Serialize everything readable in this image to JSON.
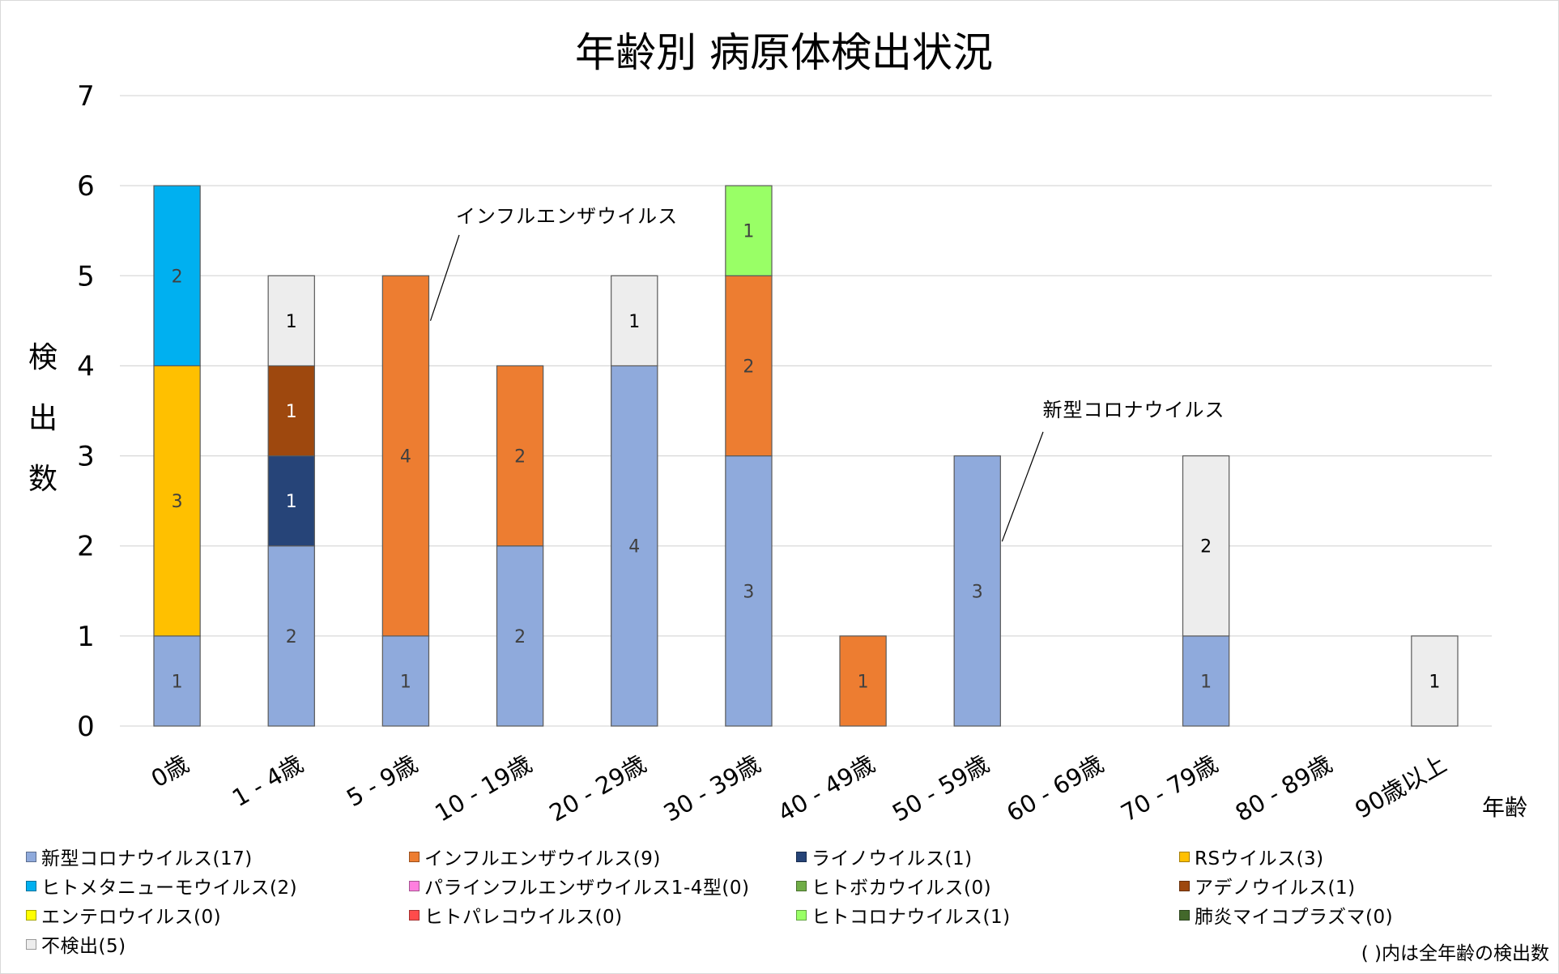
{
  "chart_data": {
    "type": "bar",
    "stacked": true,
    "title": "年齢別 病原体検出状況",
    "xlabel": "年齢",
    "ylabel": "検出数",
    "ylim": [
      0,
      7
    ],
    "yticks": [
      0,
      1,
      2,
      3,
      4,
      5,
      6,
      7
    ],
    "grid": true,
    "legend_position": "bottom",
    "categories": [
      "0歳",
      "1 - 4歳",
      "5 - 9歳",
      "10 - 19歳",
      "20 - 29歳",
      "30 - 39歳",
      "40 - 49歳",
      "50 - 59歳",
      "60 - 69歳",
      "70 - 79歳",
      "80 - 89歳",
      "90歳以上"
    ],
    "series": [
      {
        "name": "新型コロナウイルス",
        "total": 17,
        "color": "#8faadc",
        "label_color": "#404040",
        "values": [
          1,
          2,
          1,
          2,
          4,
          3,
          0,
          3,
          0,
          1,
          0,
          0
        ]
      },
      {
        "name": "インフルエンザウイルス",
        "total": 9,
        "color": "#ed7d31",
        "label_color": "#404040",
        "values": [
          0,
          0,
          4,
          2,
          0,
          2,
          1,
          0,
          0,
          0,
          0,
          0
        ]
      },
      {
        "name": "ライノウイルス",
        "total": 1,
        "color": "#264478",
        "label_color": "#ffffff",
        "values": [
          0,
          1,
          0,
          0,
          0,
          0,
          0,
          0,
          0,
          0,
          0,
          0
        ]
      },
      {
        "name": "RSウイルス",
        "total": 3,
        "color": "#ffc000",
        "label_color": "#404040",
        "values": [
          3,
          0,
          0,
          0,
          0,
          0,
          0,
          0,
          0,
          0,
          0,
          0
        ]
      },
      {
        "name": "ヒトメタニューモウイルス",
        "total": 2,
        "color": "#00b0f0",
        "label_color": "#404040",
        "values": [
          2,
          0,
          0,
          0,
          0,
          0,
          0,
          0,
          0,
          0,
          0,
          0
        ]
      },
      {
        "name": "パラインフルエンザウイルス1-4型",
        "total": 0,
        "color": "#ff7fdf",
        "label_color": "#404040",
        "values": [
          0,
          0,
          0,
          0,
          0,
          0,
          0,
          0,
          0,
          0,
          0,
          0
        ]
      },
      {
        "name": "ヒトボカウイルス",
        "total": 0,
        "color": "#70ad47",
        "label_color": "#404040",
        "values": [
          0,
          0,
          0,
          0,
          0,
          0,
          0,
          0,
          0,
          0,
          0,
          0
        ]
      },
      {
        "name": "アデノウイルス",
        "total": 1,
        "color": "#9e480e",
        "label_color": "#ffffff",
        "values": [
          0,
          1,
          0,
          0,
          0,
          0,
          0,
          0,
          0,
          0,
          0,
          0
        ]
      },
      {
        "name": "エンテロウイルス",
        "total": 0,
        "color": "#ffff00",
        "label_color": "#404040",
        "values": [
          0,
          0,
          0,
          0,
          0,
          0,
          0,
          0,
          0,
          0,
          0,
          0
        ]
      },
      {
        "name": "ヒトパレコウイルス",
        "total": 0,
        "color": "#ff4b4b",
        "label_color": "#404040",
        "values": [
          0,
          0,
          0,
          0,
          0,
          0,
          0,
          0,
          0,
          0,
          0,
          0
        ]
      },
      {
        "name": "ヒトコロナウイルス",
        "total": 1,
        "color": "#99ff66",
        "label_color": "#404040",
        "values": [
          0,
          0,
          0,
          0,
          0,
          1,
          0,
          0,
          0,
          0,
          0,
          0
        ]
      },
      {
        "name": "肺炎マイコプラズマ",
        "total": 0,
        "color": "#43682b",
        "label_color": "#ffffff",
        "values": [
          0,
          0,
          0,
          0,
          0,
          0,
          0,
          0,
          0,
          0,
          0,
          0
        ]
      },
      {
        "name": "不検出",
        "total": 5,
        "color": "#ededed",
        "label_color": "#000000",
        "values": [
          0,
          1,
          0,
          0,
          1,
          0,
          0,
          0,
          0,
          2,
          0,
          1
        ]
      }
    ],
    "annotations": [
      {
        "text": "インフルエンザウイルス",
        "series": "インフルエンザウイルス",
        "category": "5 - 9歳"
      },
      {
        "text": "新型コロナウイルス",
        "series": "新型コロナウイルス",
        "category": "50 - 59歳"
      }
    ],
    "footnote": "( )内は全年齢の検出数"
  }
}
